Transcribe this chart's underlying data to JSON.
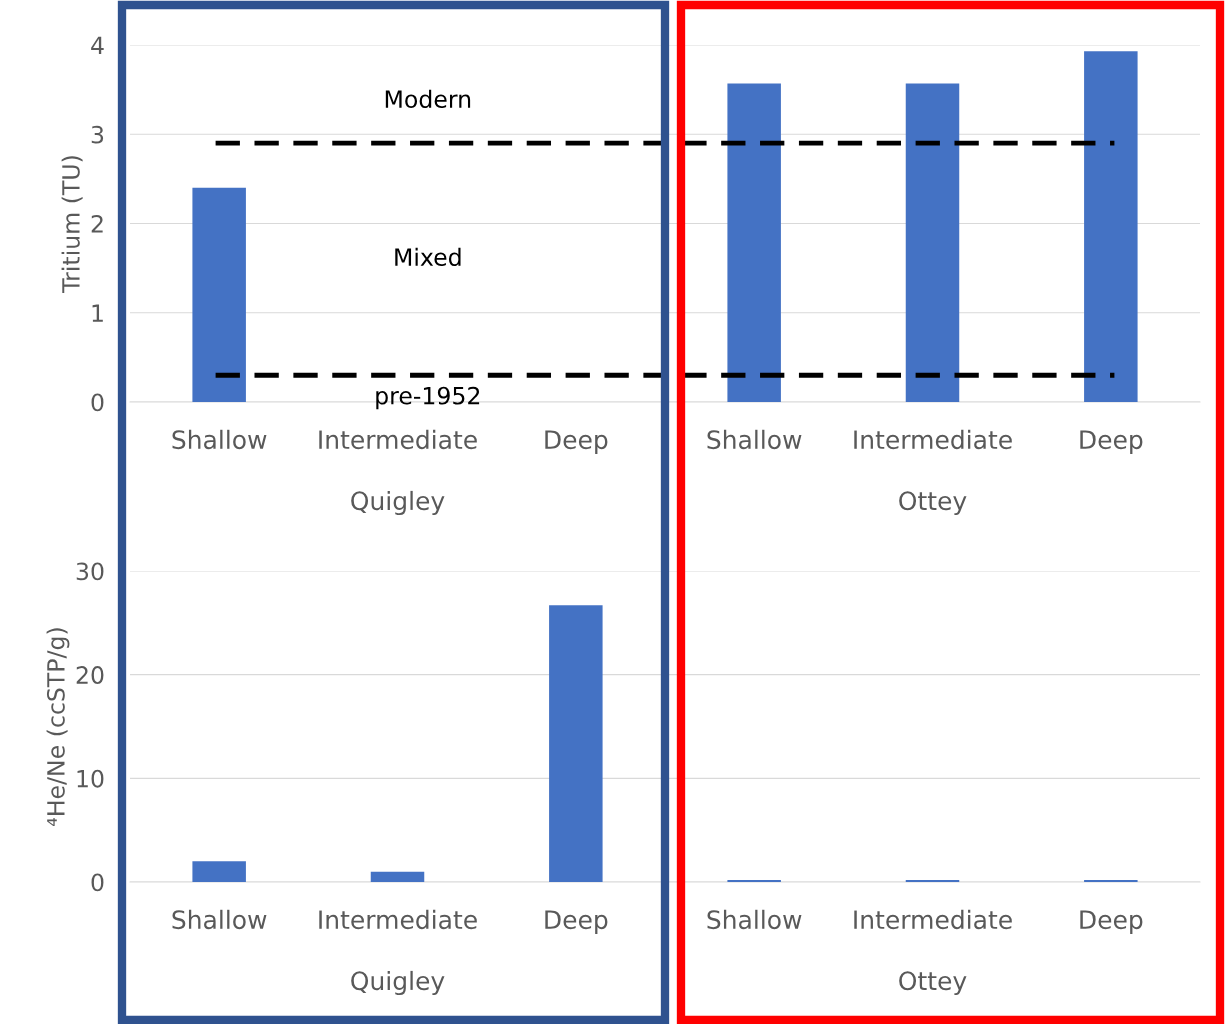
{
  "chart_data": [
    {
      "type": "bar",
      "ylabel": "Tritium (TU)",
      "categories": [
        "Shallow",
        "Intermediate",
        "Deep",
        "Shallow",
        "Intermediate",
        "Deep"
      ],
      "values": [
        2.4,
        null,
        null,
        3.57,
        3.57,
        3.93
      ],
      "color": "#4472c4",
      "ylim": [
        0,
        4
      ],
      "yticks": [
        0,
        1,
        2,
        3,
        4
      ],
      "grid": "y",
      "ref_lines": [
        {
          "axis": "y",
          "value": 2.9,
          "label": "Modern",
          "color": "#000000",
          "line_style": "dashed"
        },
        {
          "axis": "y",
          "value": 0.3,
          "label": "pre-1952",
          "color": "#000000",
          "line_style": "dashed"
        }
      ],
      "annotations": [
        "Quigley",
        "Ottey",
        "Mixed"
      ]
    },
    {
      "type": "bar",
      "ylabel": "⁴He/Ne (ccSTP/g)",
      "categories": [
        "Shallow",
        "Intermediate",
        "Deep",
        "Shallow",
        "Intermediate",
        "Deep"
      ],
      "values": [
        2.0,
        1.0,
        26.7,
        0.2,
        0.2,
        0.2
      ],
      "color": "#4472c4",
      "ylim": [
        0,
        30
      ],
      "yticks": [
        0,
        10,
        20,
        30
      ],
      "grid": "y",
      "annotations": [
        "Quigley",
        "Ottey"
      ]
    }
  ]
}
